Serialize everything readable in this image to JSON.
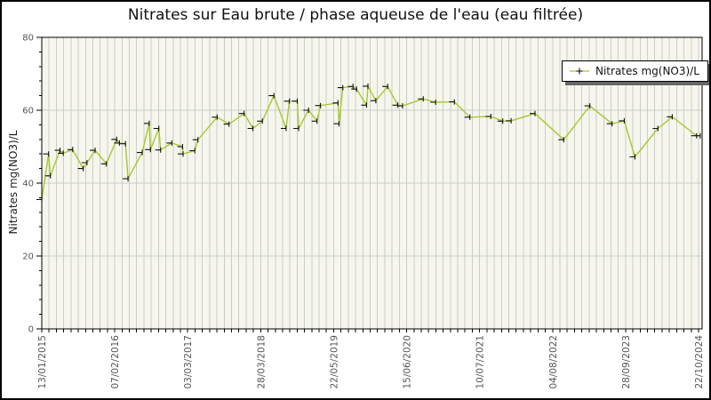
{
  "chart": {
    "title": "Nitrates sur Eau brute / phase aqueuse de l'eau (eau filtrée)",
    "ylabel": "Nitrates mg(NO3)/L",
    "legend_label": "Nitrates mg(NO3)/L"
  },
  "colors": {
    "line": "#a6c832",
    "marker": "#111111",
    "plot_bg": "#f6f6ec",
    "grid": "#cccccc",
    "axis": "#000000",
    "tick_label": "#555555",
    "legend_shadow": "#666666"
  },
  "chart_data": {
    "type": "line",
    "title": "Nitrates sur Eau brute / phase aqueuse de l'eau (eau filtrée)",
    "xlabel": "",
    "ylabel": "Nitrates mg(NO3)/L",
    "ylim": [
      0,
      80
    ],
    "y_major_ticks": [
      0,
      20,
      40,
      60,
      80
    ],
    "y_gridlines": [
      20,
      40,
      60
    ],
    "y_minor_step": 4,
    "grid": true,
    "legend_position": "top-right",
    "x_range": [
      "2015-01-13",
      "2024-10-22"
    ],
    "x_tick_labels": [
      "13/01/2015",
      "07/02/2016",
      "03/03/2017",
      "28/03/2018",
      "22/05/2019",
      "15/06/2020",
      "10/07/2021",
      "04/08/2022",
      "28/09/2023",
      "22/10/2024"
    ],
    "layout": {
      "minor_ticks_per_label": 10
    },
    "series": [
      {
        "name": "Nitrates mg(NO3)/L",
        "points": [
          {
            "d": "2015-01-13",
            "v": 35.5
          },
          {
            "d": "2015-02-19",
            "v": 48
          },
          {
            "d": "2015-03-01",
            "v": 42
          },
          {
            "d": "2015-04-22",
            "v": 49
          },
          {
            "d": "2015-05-10",
            "v": 48.2
          },
          {
            "d": "2015-06-30",
            "v": 49.2
          },
          {
            "d": "2015-08-26",
            "v": 44
          },
          {
            "d": "2015-09-16",
            "v": 45.6
          },
          {
            "d": "2015-10-30",
            "v": 49
          },
          {
            "d": "2015-12-30",
            "v": 45.3
          },
          {
            "d": "2016-02-24",
            "v": 52
          },
          {
            "d": "2016-03-10",
            "v": 51
          },
          {
            "d": "2016-04-12",
            "v": 50.8
          },
          {
            "d": "2016-04-26",
            "v": 41.2
          },
          {
            "d": "2016-07-12",
            "v": 48.4
          },
          {
            "d": "2016-08-19",
            "v": 56.4
          },
          {
            "d": "2016-08-26",
            "v": 49.2
          },
          {
            "d": "2016-10-10",
            "v": 55
          },
          {
            "d": "2016-10-20",
            "v": 49.1
          },
          {
            "d": "2016-12-20",
            "v": 51
          },
          {
            "d": "2017-02-16",
            "v": 50
          },
          {
            "d": "2017-02-19",
            "v": 48
          },
          {
            "d": "2017-04-24",
            "v": 48.9
          },
          {
            "d": "2017-05-11",
            "v": 51.9
          },
          {
            "d": "2017-08-23",
            "v": 58.1
          },
          {
            "d": "2017-10-27",
            "v": 56.2
          },
          {
            "d": "2018-01-17",
            "v": 59.1
          },
          {
            "d": "2018-03-06",
            "v": 55
          },
          {
            "d": "2018-04-26",
            "v": 57
          },
          {
            "d": "2018-06-28",
            "v": 64
          },
          {
            "d": "2018-09-02",
            "v": 55
          },
          {
            "d": "2018-09-20",
            "v": 62.5
          },
          {
            "d": "2018-11-02",
            "v": 62.5
          },
          {
            "d": "2018-11-09",
            "v": 55
          },
          {
            "d": "2019-01-02",
            "v": 60
          },
          {
            "d": "2019-02-17",
            "v": 57
          },
          {
            "d": "2019-03-08",
            "v": 61.3
          },
          {
            "d": "2019-06-11",
            "v": 62
          },
          {
            "d": "2019-06-17",
            "v": 56.3
          },
          {
            "d": "2019-07-07",
            "v": 66.2
          },
          {
            "d": "2019-09-01",
            "v": 66.5
          },
          {
            "d": "2019-09-20",
            "v": 65.8
          },
          {
            "d": "2019-11-13",
            "v": 61.4
          },
          {
            "d": "2019-11-21",
            "v": 66.6
          },
          {
            "d": "2020-01-03",
            "v": 62.6
          },
          {
            "d": "2020-03-07",
            "v": 66.5
          },
          {
            "d": "2020-05-01",
            "v": 61.4
          },
          {
            "d": "2020-05-27",
            "v": 61.2
          },
          {
            "d": "2020-09-17",
            "v": 63.1
          },
          {
            "d": "2020-11-23",
            "v": 62.2
          },
          {
            "d": "2021-03-05",
            "v": 62.3
          },
          {
            "d": "2021-05-28",
            "v": 58.1
          },
          {
            "d": "2021-09-19",
            "v": 58.3
          },
          {
            "d": "2021-11-23",
            "v": 57
          },
          {
            "d": "2022-01-07",
            "v": 57.1
          },
          {
            "d": "2022-05-17",
            "v": 59.1
          },
          {
            "d": "2022-10-20",
            "v": 51.9
          },
          {
            "d": "2023-03-11",
            "v": 61.2
          },
          {
            "d": "2023-07-10",
            "v": 56.3
          },
          {
            "d": "2023-09-14",
            "v": 57.1
          },
          {
            "d": "2023-11-11",
            "v": 47.2
          },
          {
            "d": "2024-03-15",
            "v": 55
          },
          {
            "d": "2024-06-01",
            "v": 58.2
          },
          {
            "d": "2024-10-11",
            "v": 53
          },
          {
            "d": "2024-10-31",
            "v": 53
          }
        ]
      }
    ]
  }
}
